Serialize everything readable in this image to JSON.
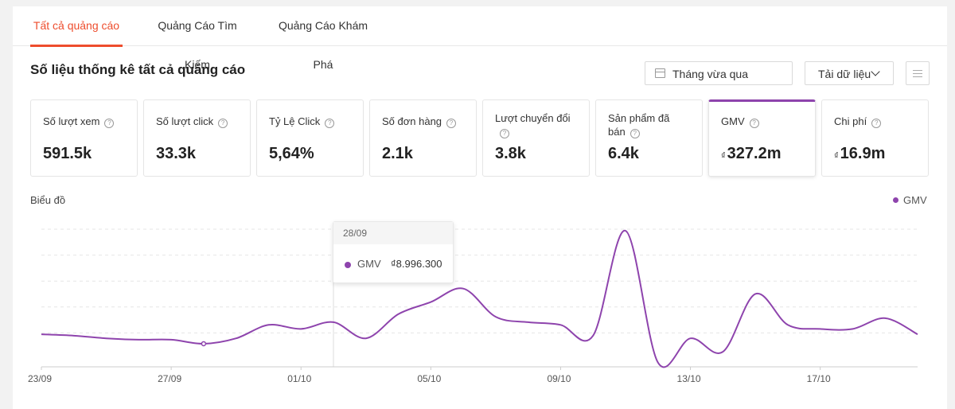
{
  "tabs": [
    {
      "label": "Tất cả quảng cáo",
      "active": true
    },
    {
      "label": "Quảng Cáo Tìm Kiếm",
      "active": false
    },
    {
      "label": "Quảng Cáo Khám Phá",
      "active": false
    }
  ],
  "header": {
    "title": "Số liệu thống kê tất cả quảng cáo",
    "date_range": "Tháng vừa qua",
    "download_label": "Tải dữ liệu"
  },
  "metrics": [
    {
      "label": "Số lượt xem",
      "value": "591.5k",
      "currency": ""
    },
    {
      "label": "Số lượt click",
      "value": "33.3k",
      "currency": ""
    },
    {
      "label": "Tỷ Lệ Click",
      "value": "5,64%",
      "currency": ""
    },
    {
      "label": "Số đơn hàng",
      "value": "2.1k",
      "currency": ""
    },
    {
      "label": "Lượt chuyển đổi",
      "value": "3.8k",
      "currency": ""
    },
    {
      "label": "Sản phẩm đã bán",
      "value": "6.4k",
      "currency": ""
    },
    {
      "label": "GMV",
      "value": "327.2m",
      "currency": "₫",
      "active": true
    },
    {
      "label": "Chi phí",
      "value": "16.9m",
      "currency": "₫"
    }
  ],
  "chart": {
    "label": "Biểu đồ",
    "legend": "GMV",
    "color": "#8e44ad",
    "tooltip": {
      "date": "28/09",
      "series": "GMV",
      "value": "₫8.996.300"
    }
  },
  "chart_data": {
    "type": "line",
    "x_ticks": [
      "23/09",
      "27/09",
      "01/10",
      "05/10",
      "09/10",
      "13/10",
      "17/10"
    ],
    "series": [
      {
        "name": "GMV",
        "values": [
          0.23,
          0.22,
          0.2,
          0.19,
          0.19,
          0.16,
          0.2,
          0.3,
          0.27,
          0.32,
          0.2,
          0.38,
          0.47,
          0.57,
          0.36,
          0.32,
          0.3,
          0.22,
          1.0,
          0.02,
          0.2,
          0.1,
          0.53,
          0.3,
          0.27,
          0.27,
          0.35,
          0.23
        ]
      }
    ]
  }
}
